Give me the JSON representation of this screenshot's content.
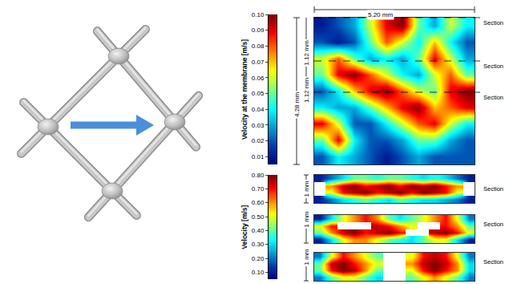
{
  "chart_data": [
    {
      "type": "heatmap",
      "color": "Jet",
      "tick_labels": false,
      "colorbar": {
        "title": "Velocity at the membrane [m/s]",
        "range": [
          0.005,
          0.1
        ],
        "ticks": [
          0.01,
          0.02,
          0.03,
          0.04,
          0.05,
          0.06,
          0.07,
          0.08,
          0.09,
          {
            "value": 0.1,
            "label": "0.10"
          }
        ]
      },
      "dimensions": {
        "width": "5.20 mm",
        "height": "4.28 mm",
        "section_spacing": [
          "1.12 mm",
          "1.12 mm"
        ]
      },
      "section_labels": [
        "Section",
        "Section",
        "Section"
      ],
      "cells": [
        [
          0.01,
          0.02,
          0.03,
          0.06,
          0.09,
          0.1,
          0.05,
          0.03,
          0.06,
          0.04
        ],
        [
          0.02,
          0.01,
          0.02,
          0.05,
          0.08,
          0.06,
          0.04,
          0.07,
          0.04,
          0.02
        ],
        [
          0.06,
          0.08,
          0.05,
          0.03,
          0.04,
          0.03,
          0.05,
          0.09,
          0.06,
          0.03
        ],
        [
          0.05,
          0.09,
          0.1,
          0.08,
          0.06,
          0.04,
          0.03,
          0.06,
          0.08,
          0.05
        ],
        [
          0.02,
          0.04,
          0.07,
          0.09,
          0.1,
          0.08,
          0.06,
          0.05,
          0.09,
          0.1
        ],
        [
          0.04,
          0.03,
          0.03,
          0.05,
          0.07,
          0.09,
          0.1,
          0.07,
          0.08,
          0.09
        ],
        [
          0.09,
          0.06,
          0.02,
          0.02,
          0.04,
          0.06,
          0.08,
          0.09,
          0.06,
          0.04
        ],
        [
          0.05,
          0.09,
          0.04,
          0.02,
          0.02,
          0.03,
          0.05,
          0.05,
          0.03,
          0.02
        ],
        [
          0.02,
          0.04,
          0.03,
          0.02,
          0.01,
          0.02,
          0.03,
          0.02,
          0.02,
          0.02
        ]
      ]
    },
    {
      "type": "heatmap",
      "color": "Jet",
      "tick_labels": false,
      "colorbar": {
        "title": "Velocity [m/s]",
        "range": [
          0.05,
          0.8
        ],
        "ticks": [
          {
            "value": 0.1,
            "label": "0.10"
          },
          {
            "value": 0.2,
            "label": "0.20"
          },
          {
            "value": 0.3,
            "label": "0.30"
          },
          {
            "value": 0.4,
            "label": "0.40"
          },
          {
            "value": 0.5,
            "label": "0.50"
          },
          {
            "value": 0.6,
            "label": "0.60"
          },
          {
            "value": 0.7,
            "label": "0.70"
          },
          {
            "value": 0.8,
            "label": "0.80"
          }
        ]
      },
      "panels": [
        {
          "height": "1 mm",
          "label": "Section",
          "cells": [
            [
              0.1,
              0.2,
              0.3,
              0.4,
              0.4,
              0.35,
              0.4,
              0.4,
              0.35,
              0.3,
              0.35,
              0.3,
              0.2,
              0.1
            ],
            [
              null,
              0.6,
              0.75,
              0.8,
              0.7,
              0.75,
              0.8,
              0.7,
              0.8,
              0.75,
              0.8,
              0.7,
              0.6,
              null
            ],
            [
              null,
              0.5,
              0.7,
              0.75,
              0.8,
              0.7,
              0.75,
              0.8,
              0.7,
              0.8,
              0.75,
              0.7,
              0.5,
              null
            ],
            [
              0.1,
              0.2,
              0.3,
              0.35,
              0.4,
              0.35,
              0.3,
              0.4,
              0.35,
              0.3,
              0.3,
              0.25,
              0.2,
              0.1
            ]
          ]
        },
        {
          "height": "1 mm",
          "label": "Section",
          "cells": [
            [
              0.1,
              0.3,
              0.5,
              0.6,
              0.7,
              0.6,
              0.4,
              0.3,
              0.4,
              0.5,
              0.6,
              0.7,
              0.5,
              0.2
            ],
            [
              0.5,
              0.7,
              null,
              null,
              null,
              0.75,
              0.7,
              0.6,
              0.5,
              null,
              null,
              0.7,
              0.6,
              0.4
            ],
            [
              0.4,
              0.6,
              0.75,
              0.8,
              0.7,
              0.75,
              0.8,
              0.7,
              null,
              null,
              0.75,
              0.8,
              0.7,
              0.5
            ],
            [
              0.1,
              0.3,
              0.5,
              0.6,
              0.6,
              0.5,
              0.4,
              0.35,
              0.3,
              0.4,
              0.5,
              0.5,
              0.3,
              0.1
            ]
          ]
        },
        {
          "height": "1 mm",
          "label": "Section",
          "cells": [
            [
              0.2,
              0.5,
              0.7,
              0.6,
              0.5,
              0.4,
              null,
              null,
              0.5,
              0.7,
              0.75,
              0.7,
              0.5,
              0.2
            ],
            [
              0.4,
              0.75,
              0.8,
              0.7,
              0.6,
              0.5,
              null,
              null,
              0.6,
              0.75,
              0.8,
              0.75,
              0.6,
              0.3
            ],
            [
              0.4,
              0.7,
              0.8,
              0.75,
              0.6,
              0.4,
              null,
              null,
              0.5,
              0.7,
              0.8,
              0.7,
              0.6,
              0.3
            ],
            [
              0.2,
              0.4,
              0.5,
              0.5,
              0.4,
              0.3,
              null,
              null,
              0.4,
              0.5,
              0.6,
              0.5,
              0.4,
              0.2
            ]
          ]
        }
      ]
    }
  ]
}
